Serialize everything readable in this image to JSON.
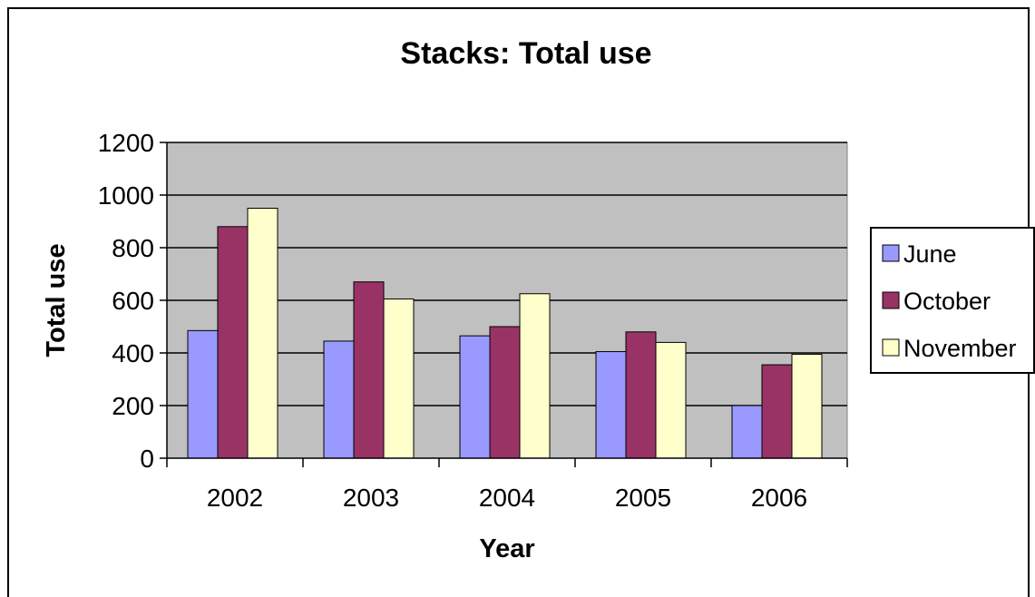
{
  "chart_data": {
    "type": "bar",
    "title": "Stacks: Total use",
    "xlabel": "Year",
    "ylabel": "Total use",
    "categories": [
      "2002",
      "2003",
      "2004",
      "2005",
      "2006"
    ],
    "series": [
      {
        "name": "June",
        "values": [
          485,
          445,
          465,
          405,
          200
        ],
        "color": "#9999ff"
      },
      {
        "name": "October",
        "values": [
          880,
          670,
          500,
          480,
          355
        ],
        "color": "#993366"
      },
      {
        "name": "November",
        "values": [
          950,
          605,
          625,
          440,
          395
        ],
        "color": "#ffffcc"
      }
    ],
    "ylim": [
      0,
      1200
    ],
    "yticks": [
      0,
      200,
      400,
      600,
      800,
      1000,
      1200
    ],
    "grid": true,
    "plot_background": "#c0c0c0",
    "legend_position": "right"
  }
}
